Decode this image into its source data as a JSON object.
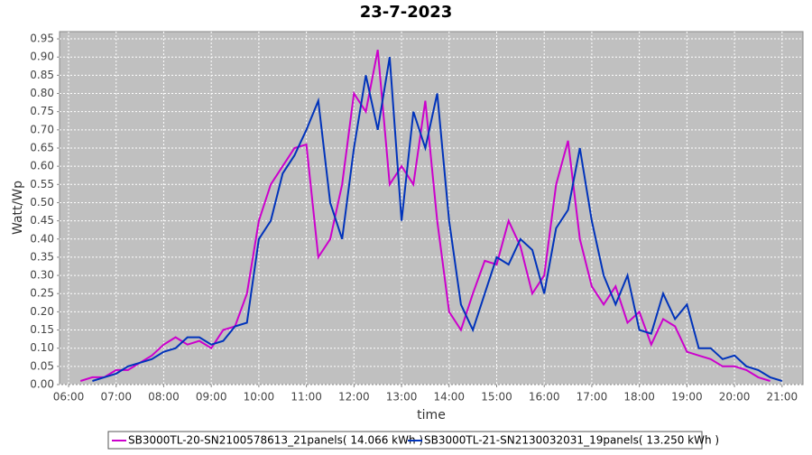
{
  "chart_data": {
    "type": "line",
    "title": "23-7-2023",
    "x_label": "time",
    "y_label": "Watt/Wp",
    "x": [
      6.0,
      6.25,
      6.5,
      6.75,
      7.0,
      7.25,
      7.5,
      7.75,
      8.0,
      8.25,
      8.5,
      8.75,
      9.0,
      9.25,
      9.5,
      9.75,
      10.0,
      10.25,
      10.5,
      10.75,
      11.0,
      11.25,
      11.5,
      11.75,
      12.0,
      12.25,
      12.5,
      12.75,
      13.0,
      13.25,
      13.5,
      13.75,
      14.0,
      14.25,
      14.5,
      14.75,
      15.0,
      15.25,
      15.5,
      15.75,
      16.0,
      16.25,
      16.5,
      16.75,
      17.0,
      17.25,
      17.5,
      17.75,
      18.0,
      18.25,
      18.5,
      18.75,
      19.0,
      19.25,
      19.5,
      19.75,
      20.0,
      20.25,
      20.5,
      20.75,
      21.0
    ],
    "series": [
      {
        "name": "SB3000TL-20-SN2100578613_21panels( 14.066 kWh )",
        "color": "#cc00cc",
        "values": [
          null,
          0.01,
          0.02,
          0.02,
          0.04,
          0.04,
          0.06,
          0.08,
          0.11,
          0.13,
          0.11,
          0.12,
          0.1,
          0.15,
          0.16,
          0.25,
          0.45,
          0.55,
          0.6,
          0.65,
          0.66,
          0.35,
          0.4,
          0.55,
          0.8,
          0.75,
          0.92,
          0.55,
          0.6,
          0.55,
          0.78,
          0.45,
          0.2,
          0.15,
          0.25,
          0.34,
          0.33,
          0.45,
          0.38,
          0.25,
          0.3,
          0.55,
          0.67,
          0.4,
          0.27,
          0.22,
          0.27,
          0.17,
          0.2,
          0.11,
          0.18,
          0.16,
          0.09,
          0.08,
          0.07,
          0.05,
          0.05,
          0.04,
          0.02,
          0.01,
          null
        ]
      },
      {
        "name": "SB3000TL-21-SN2130032031_19panels( 13.250 kWh )",
        "color": "#0033bb",
        "values": [
          null,
          null,
          0.01,
          0.02,
          0.03,
          0.05,
          0.06,
          0.07,
          0.09,
          0.1,
          0.13,
          0.13,
          0.11,
          0.12,
          0.16,
          0.17,
          0.4,
          0.45,
          0.58,
          0.63,
          0.7,
          0.78,
          0.5,
          0.4,
          0.65,
          0.85,
          0.7,
          0.9,
          0.45,
          0.75,
          0.65,
          0.8,
          0.45,
          0.22,
          0.15,
          0.25,
          0.35,
          0.33,
          0.4,
          0.37,
          0.25,
          0.43,
          0.48,
          0.65,
          0.45,
          0.3,
          0.22,
          0.3,
          0.15,
          0.14,
          0.25,
          0.18,
          0.22,
          0.1,
          0.1,
          0.07,
          0.08,
          0.05,
          0.04,
          0.02,
          0.01
        ]
      }
    ],
    "xlim": [
      5.81,
      21.44
    ],
    "xticks": [
      {
        "value": 6,
        "label": "06:00"
      },
      {
        "value": 7,
        "label": "07:00"
      },
      {
        "value": 8,
        "label": "08:00"
      },
      {
        "value": 9,
        "label": "09:00"
      },
      {
        "value": 10,
        "label": "10:00"
      },
      {
        "value": 11,
        "label": "11:00"
      },
      {
        "value": 12,
        "label": "12:00"
      },
      {
        "value": 13,
        "label": "13:00"
      },
      {
        "value": 14,
        "label": "14:00"
      },
      {
        "value": 15,
        "label": "15:00"
      },
      {
        "value": 16,
        "label": "16:00"
      },
      {
        "value": 17,
        "label": "17:00"
      },
      {
        "value": 18,
        "label": "18:00"
      },
      {
        "value": 19,
        "label": "19:00"
      },
      {
        "value": 20,
        "label": "20:00"
      },
      {
        "value": 21,
        "label": "21:00"
      }
    ],
    "ylim": [
      0,
      0.97
    ],
    "yticks": [
      {
        "value": 0,
        "label": "0.00"
      },
      0.05,
      {
        "value": 0.1,
        "label": "0.10"
      },
      0.15,
      {
        "value": 0.2,
        "label": "0.20"
      },
      0.25,
      {
        "value": 0.3,
        "label": "0.30"
      },
      0.35,
      {
        "value": 0.4,
        "label": "0.40"
      },
      0.45,
      {
        "value": 0.5,
        "label": "0.50"
      },
      0.55,
      {
        "value": 0.6,
        "label": "0.60"
      },
      0.65,
      {
        "value": 0.7,
        "label": "0.70"
      },
      0.75,
      {
        "value": 0.8,
        "label": "0.80"
      },
      0.85,
      {
        "value": 0.9,
        "label": "0.90"
      },
      0.95
    ],
    "grid": true
  }
}
